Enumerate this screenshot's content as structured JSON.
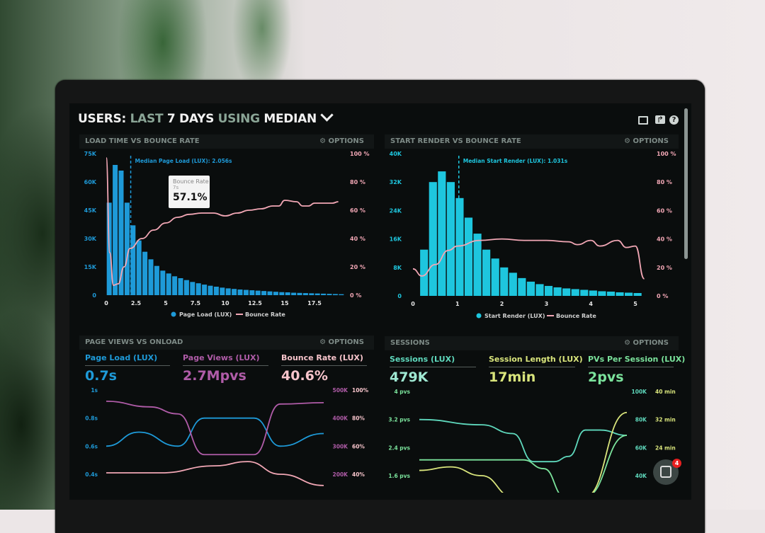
{
  "header": {
    "title_parts": [
      "USERS:",
      "LAST",
      "7 DAYS",
      "USING",
      "MEDIAN"
    ],
    "icons": [
      "monitor-icon",
      "share-icon",
      "help-icon"
    ]
  },
  "options_label": "OPTIONS",
  "colors": {
    "page_load": "#1e9ad8",
    "start_render": "#1ec6de",
    "bounce": "#f2a7b5",
    "page_views": "#b05ca8",
    "bounce_lux": "#f7c4cb",
    "sessions": "#5fd9bd",
    "session_length": "#d9e57c",
    "pvs_per_session": "#7be39c"
  },
  "chat": {
    "badge": "4"
  },
  "chart_data": [
    {
      "id": "load",
      "type": "bar",
      "title": "LOAD TIME VS BOUNCE RATE",
      "xlim": [
        0,
        20
      ],
      "ylim": [
        0,
        75000
      ],
      "y2lim": [
        0,
        100
      ],
      "x_ticks": [
        "0",
        "2.5",
        "5",
        "7.5",
        "10",
        "12.5",
        "15",
        "17.5"
      ],
      "y_ticks": [
        "0",
        "15K",
        "30K",
        "45K",
        "60K",
        "75K"
      ],
      "y2_ticks": [
        "0 %",
        "20 %",
        "40 %",
        "60 %",
        "80 %",
        "100 %"
      ],
      "median_label": "Median Page Load (LUX): 2.056s",
      "median": 2.056,
      "tooltip": {
        "title": "Bounce Rate",
        "sub": "7s",
        "value": "57.1%"
      },
      "legend": [
        "Page Load (LUX)",
        "Bounce Rate"
      ],
      "bin_width": 0.5,
      "bars": [
        49000,
        69000,
        66000,
        49000,
        37000,
        29000,
        23000,
        19000,
        15500,
        13000,
        11500,
        10000,
        9000,
        8000,
        7000,
        6300,
        5600,
        5000,
        4500,
        4000,
        3600,
        3300,
        3000,
        2800,
        2600,
        2400,
        2200,
        2000,
        1800,
        1600,
        1500,
        1300,
        1200,
        1100,
        1000,
        900,
        800,
        700,
        600,
        500
      ],
      "line": [
        [
          0,
          97
        ],
        [
          0.3,
          30
        ],
        [
          0.6,
          7
        ],
        [
          1,
          8
        ],
        [
          1.5,
          20
        ],
        [
          2,
          33
        ],
        [
          3,
          40
        ],
        [
          4,
          46
        ],
        [
          5,
          51
        ],
        [
          6,
          55
        ],
        [
          7,
          57.1
        ],
        [
          8,
          58
        ],
        [
          9,
          58
        ],
        [
          10,
          56
        ],
        [
          11,
          58
        ],
        [
          12,
          60
        ],
        [
          13,
          61
        ],
        [
          14,
          63
        ],
        [
          14.5,
          63
        ],
        [
          15,
          67
        ],
        [
          16,
          66
        ],
        [
          16.5,
          63
        ],
        [
          17,
          63
        ],
        [
          17.5,
          65
        ],
        [
          18,
          65
        ],
        [
          19,
          65
        ],
        [
          19.5,
          66
        ]
      ]
    },
    {
      "id": "render",
      "type": "bar",
      "title": "START RENDER VS BOUNCE RATE",
      "xlim": [
        0,
        5.2
      ],
      "ylim": [
        0,
        40000
      ],
      "y2lim": [
        0,
        100
      ],
      "x_ticks": [
        "0",
        "1",
        "2",
        "3",
        "4",
        "5"
      ],
      "y_ticks": [
        "0",
        "8K",
        "16K",
        "24K",
        "32K",
        "40K"
      ],
      "y2_ticks": [
        "0 %",
        "20 %",
        "40 %",
        "60 %",
        "80 %",
        "100 %"
      ],
      "median_label": "Median Start Render (LUX): 1.031s",
      "median": 1.031,
      "legend": [
        "Start Render (LUX)",
        "Bounce Rate"
      ],
      "bin_width": 0.2,
      "bars": [
        13000,
        32000,
        35000,
        32000,
        27500,
        22000,
        17500,
        13000,
        10500,
        8000,
        6500,
        5000,
        4000,
        3300,
        2800,
        2400,
        2100,
        1900,
        1700,
        1500,
        1300,
        1200,
        1000,
        900,
        800
      ],
      "line": [
        [
          0,
          19
        ],
        [
          0.2,
          14
        ],
        [
          0.5,
          22
        ],
        [
          0.8,
          32
        ],
        [
          1,
          35
        ],
        [
          1.5,
          39
        ],
        [
          2,
          40
        ],
        [
          2.5,
          39
        ],
        [
          3,
          39
        ],
        [
          3.5,
          38
        ],
        [
          3.7,
          36
        ],
        [
          4,
          39
        ],
        [
          4.2,
          35
        ],
        [
          4.6,
          39
        ],
        [
          4.8,
          34
        ],
        [
          5,
          35
        ],
        [
          5.2,
          12
        ]
      ]
    },
    {
      "id": "pageviews",
      "type": "line",
      "title": "PAGE VIEWS VS ONLOAD",
      "metrics": [
        {
          "label": "Page Load (LUX)",
          "value": "0.7s"
        },
        {
          "label": "Page Views (LUX)",
          "value": "2.7Mpvs"
        },
        {
          "label": "Bounce Rate (LUX)",
          "value": "40.6%"
        }
      ],
      "y_ticks": [
        "0.4s",
        "0.6s",
        "0.8s",
        "1s"
      ],
      "y2_ticks": [
        "200K",
        "300K",
        "400K",
        "500K"
      ],
      "y3_ticks": [
        "40%",
        "60%",
        "80%",
        "100%"
      ],
      "ylim": [
        0.4,
        1
      ],
      "y2lim": [
        200000,
        500000
      ],
      "y3lim": [
        40,
        100
      ],
      "series": [
        {
          "name": "Page Load (LUX)",
          "axis": "y",
          "points": [
            [
              0,
              0.6
            ],
            [
              0.15,
              0.7
            ],
            [
              0.33,
              0.6
            ],
            [
              0.45,
              0.8
            ],
            [
              0.68,
              0.8
            ],
            [
              0.8,
              0.6
            ],
            [
              1,
              0.69
            ]
          ]
        },
        {
          "name": "Page Views (LUX)",
          "axis": "y2",
          "points": [
            [
              0,
              460000
            ],
            [
              0.2,
              440000
            ],
            [
              0.33,
              415000
            ],
            [
              0.45,
              270000
            ],
            [
              0.68,
              270000
            ],
            [
              0.8,
              450000
            ],
            [
              1,
              455000
            ]
          ]
        },
        {
          "name": "Bounce Rate (LUX)",
          "axis": "y3",
          "points": [
            [
              0,
              41
            ],
            [
              0.25,
              41
            ],
            [
              0.5,
              46
            ],
            [
              0.65,
              49
            ],
            [
              0.8,
              40
            ],
            [
              1,
              32
            ]
          ]
        }
      ]
    },
    {
      "id": "sessions",
      "type": "line",
      "title": "SESSIONS",
      "metrics": [
        {
          "label": "Sessions (LUX)",
          "value": "479K"
        },
        {
          "label": "Session Length (LUX)",
          "value": "17min"
        },
        {
          "label": "PVs Per Session (LUX)",
          "value": "2pvs"
        }
      ],
      "y_ticks": [
        "1.6 pvs",
        "2.4 pvs",
        "3.2 pvs",
        "4 pvs"
      ],
      "y2_ticks": [
        "40K",
        "60K",
        "80K",
        "100K"
      ],
      "y3_ticks": [
        "24 min",
        "32 min",
        "40 min"
      ],
      "ylim": [
        1.6,
        4
      ],
      "series": [
        {
          "name": "Sessions (LUX)",
          "points": [
            [
              0,
              3.2
            ],
            [
              0.3,
              3.05
            ],
            [
              0.45,
              2.8
            ],
            [
              0.55,
              2.0
            ],
            [
              0.65,
              2.0
            ],
            [
              0.72,
              2.15
            ],
            [
              0.8,
              2.9
            ],
            [
              0.87,
              2.9
            ],
            [
              1,
              2.75
            ]
          ]
        },
        {
          "name": "PVs Per Session (LUX)",
          "points": [
            [
              0,
              2.05
            ],
            [
              0.5,
              2.05
            ],
            [
              0.6,
              1.8
            ],
            [
              0.7,
              1.0
            ],
            [
              0.8,
              1.0
            ],
            [
              1,
              2.75
            ]
          ]
        },
        {
          "name": "Session Length (LUX)",
          "points": [
            [
              0,
              1.75
            ],
            [
              0.15,
              1.85
            ],
            [
              0.3,
              1.6
            ],
            [
              0.45,
              1.0
            ],
            [
              0.8,
              1.0
            ],
            [
              1,
              3.4
            ]
          ]
        }
      ]
    }
  ]
}
